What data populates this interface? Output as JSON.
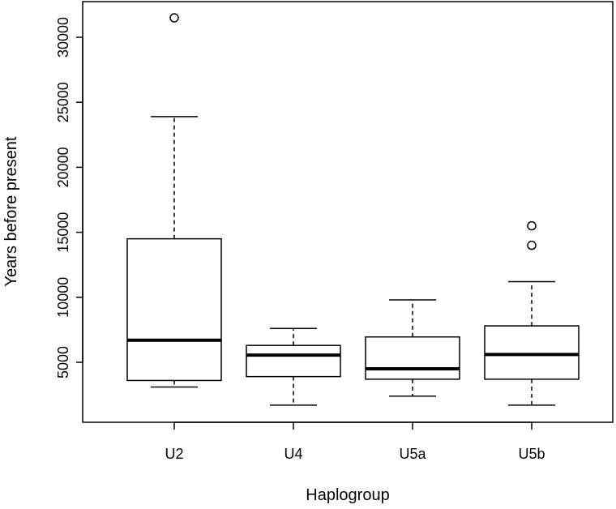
{
  "chart_data": {
    "type": "boxplot",
    "xlabel": "Haplogroup",
    "ylabel": "Years before present",
    "ylim": [
      0,
      32000
    ],
    "yticks": [
      5000,
      10000,
      15000,
      20000,
      25000,
      30000
    ],
    "grid": false,
    "categories": [
      "U2",
      "U4",
      "U5a",
      "U5b"
    ],
    "boxes": [
      {
        "name": "U2",
        "whisker_low": 3100,
        "q1": 3600,
        "median": 6700,
        "q3": 14500,
        "whisker_high": 23900,
        "outliers": [
          31500
        ]
      },
      {
        "name": "U4",
        "whisker_low": 1700,
        "q1": 3900,
        "median": 5550,
        "q3": 6300,
        "whisker_high": 7600,
        "outliers": []
      },
      {
        "name": "U5a",
        "whisker_low": 2400,
        "q1": 3700,
        "median": 4500,
        "q3": 6950,
        "whisker_high": 9800,
        "outliers": []
      },
      {
        "name": "U5b",
        "whisker_low": 1700,
        "q1": 3700,
        "median": 5600,
        "q3": 7800,
        "whisker_high": 11200,
        "outliers": [
          14000,
          15500
        ]
      }
    ]
  }
}
